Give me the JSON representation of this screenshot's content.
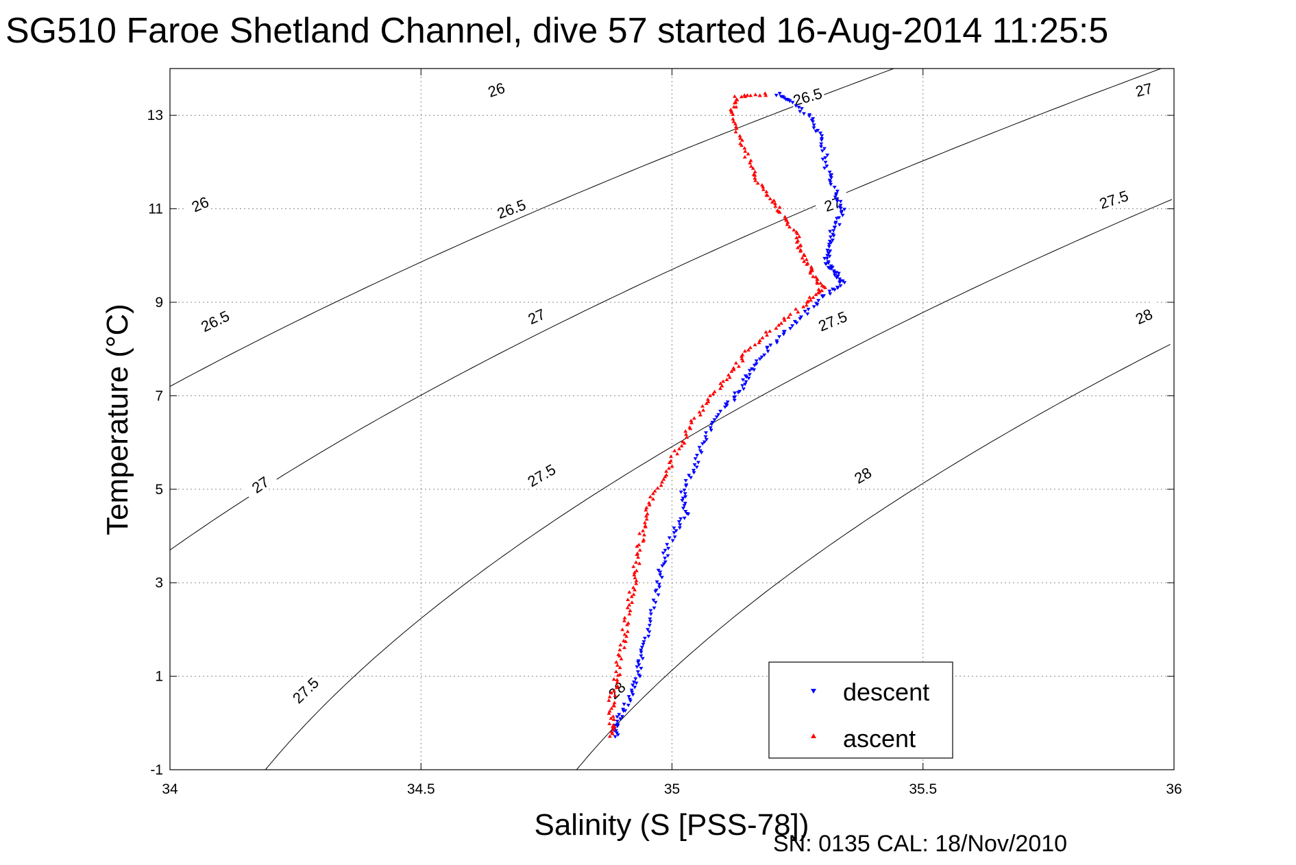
{
  "chart_data": {
    "type": "scatter",
    "title": "SG510 Faroe Shetland Channel, dive 57 started 16-Aug-2014 11:25:5",
    "xlabel": "Salinity (S [PSS-78])",
    "ylabel": "Temperature (°C)",
    "footer": "SN: 0135  CAL: 18/Nov/2010",
    "xlim": [
      34,
      36
    ],
    "ylim": [
      -1,
      14
    ],
    "x_ticks": [
      "34",
      "34.5",
      "35",
      "35.5",
      "36"
    ],
    "y_ticks": [
      "-1",
      "1",
      "3",
      "5",
      "7",
      "9",
      "11",
      "13"
    ],
    "grid": true,
    "legend_position": "bottom-right",
    "series": [
      {
        "name": "descent",
        "color": "#0000ff",
        "marker": "triangle-down",
        "profile": [
          [
            35.21,
            13.45
          ],
          [
            35.24,
            13.3
          ],
          [
            35.28,
            12.9
          ],
          [
            35.3,
            12.4
          ],
          [
            35.31,
            11.8
          ],
          [
            35.33,
            11.3
          ],
          [
            35.34,
            10.9
          ],
          [
            35.32,
            10.5
          ],
          [
            35.31,
            10.1
          ],
          [
            35.31,
            9.8
          ],
          [
            35.33,
            9.6
          ],
          [
            35.34,
            9.4
          ],
          [
            35.3,
            9.1
          ],
          [
            35.25,
            8.6
          ],
          [
            35.2,
            8.1
          ],
          [
            35.16,
            7.6
          ],
          [
            35.14,
            7.2
          ],
          [
            35.11,
            6.8
          ],
          [
            35.07,
            6.2
          ],
          [
            35.05,
            5.6
          ],
          [
            35.02,
            5.0
          ],
          [
            35.03,
            4.5
          ],
          [
            35.0,
            4.0
          ],
          [
            34.98,
            3.4
          ],
          [
            34.97,
            2.8
          ],
          [
            34.95,
            2.0
          ],
          [
            34.94,
            1.4
          ],
          [
            34.93,
            0.9
          ],
          [
            34.91,
            0.4
          ],
          [
            34.89,
            0.0
          ],
          [
            34.89,
            -0.3
          ]
        ]
      },
      {
        "name": "ascent",
        "color": "#ff0000",
        "marker": "triangle-up",
        "profile": [
          [
            35.19,
            13.45
          ],
          [
            35.13,
            13.4
          ],
          [
            35.12,
            13.0
          ],
          [
            35.14,
            12.4
          ],
          [
            35.16,
            11.8
          ],
          [
            35.19,
            11.3
          ],
          [
            35.22,
            10.9
          ],
          [
            35.25,
            10.4
          ],
          [
            35.26,
            10.0
          ],
          [
            35.28,
            9.6
          ],
          [
            35.3,
            9.3
          ],
          [
            35.27,
            9.0
          ],
          [
            35.21,
            8.5
          ],
          [
            35.15,
            8.0
          ],
          [
            35.12,
            7.5
          ],
          [
            35.08,
            7.0
          ],
          [
            35.04,
            6.4
          ],
          [
            35.01,
            5.8
          ],
          [
            34.98,
            5.2
          ],
          [
            34.95,
            4.6
          ],
          [
            34.94,
            4.0
          ],
          [
            34.93,
            3.4
          ],
          [
            34.92,
            2.8
          ],
          [
            34.91,
            2.2
          ],
          [
            34.9,
            1.6
          ],
          [
            34.89,
            1.0
          ],
          [
            34.88,
            0.5
          ],
          [
            34.88,
            0.0
          ],
          [
            34.88,
            -0.3
          ]
        ]
      }
    ],
    "contour_label_texts": [
      "26",
      "26.5",
      "27",
      "27.5",
      "28"
    ]
  }
}
